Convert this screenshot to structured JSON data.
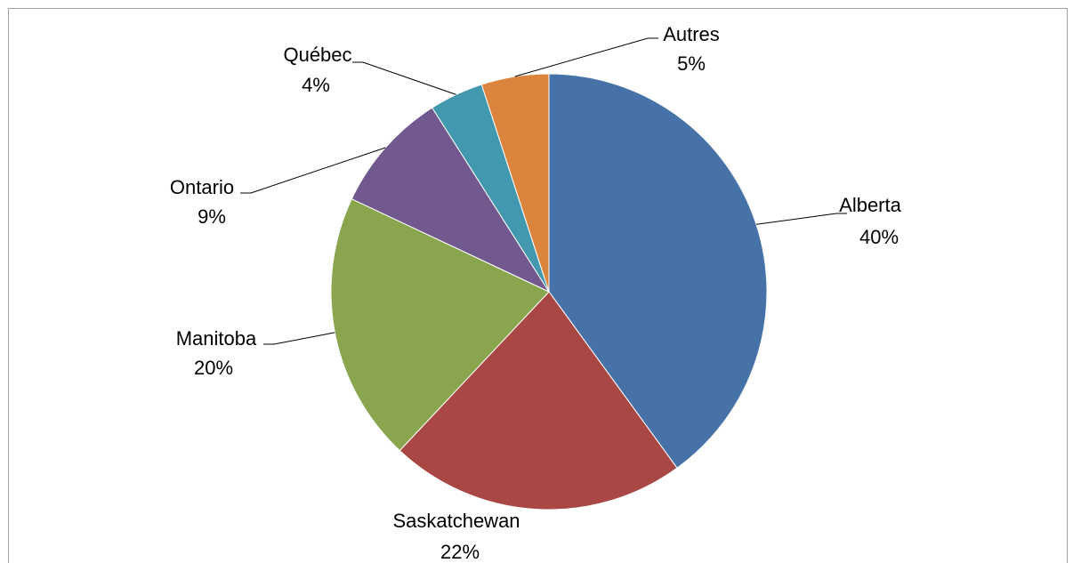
{
  "chart_data": {
    "type": "pie",
    "categories": [
      "Alberta",
      "Saskatchewan",
      "Manitoba",
      "Ontario",
      "Québec",
      "Autres"
    ],
    "values": [
      40,
      22,
      20,
      9,
      4,
      5
    ],
    "value_labels": [
      "40%",
      "22%",
      "20%",
      "9%",
      "4%",
      "5%"
    ],
    "colors": [
      "#4672a8",
      "#a94744",
      "#89a54e",
      "#71588f",
      "#4298af",
      "#db843d"
    ]
  }
}
